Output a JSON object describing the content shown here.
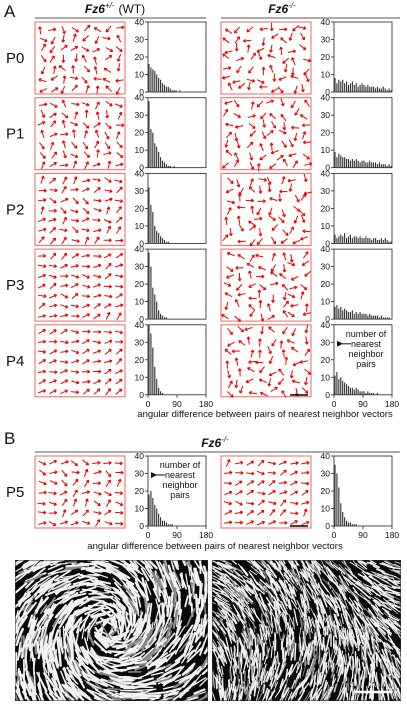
{
  "panel_a": {
    "label": "A",
    "groups": [
      {
        "gene": "Fz6",
        "superscript": "+/-",
        "suffix": "(WT)"
      },
      {
        "gene": "Fz6",
        "superscript": "-/-"
      }
    ],
    "rows": [
      "P0",
      "P1",
      "P2",
      "P3",
      "P4"
    ],
    "annotation": [
      "number of",
      "nearest",
      "neighbor",
      "pairs"
    ],
    "x_axis_label": "angular difference between pairs of nearest neighbor vectors"
  },
  "panel_b": {
    "label": "B",
    "title": {
      "gene": "Fz6",
      "superscript": "-/-"
    },
    "row": "P5",
    "annotation": [
      "number of",
      "nearest",
      "neighbor",
      "pairs"
    ],
    "x_axis_label": "angular difference between pairs of nearest neighbor vectors"
  },
  "chart_data": [
    {
      "type": "histogram",
      "color": "#333333",
      "bins": [
        0,
        6,
        12,
        18,
        24,
        30,
        36,
        42,
        48,
        54,
        60,
        66,
        72,
        78,
        84,
        90,
        96,
        102,
        108,
        114,
        120,
        126,
        132,
        138,
        144,
        150,
        156,
        162,
        168,
        174,
        180
      ],
      "values": [
        16,
        14,
        13,
        12,
        10,
        8,
        7,
        5,
        4,
        3,
        3,
        2,
        1,
        1,
        1,
        0,
        1,
        0,
        0,
        0,
        0,
        0,
        0,
        0,
        0,
        0,
        0,
        0,
        0,
        0
      ],
      "xlim": [
        0,
        180
      ],
      "ylim": [
        0,
        40
      ],
      "yticks": [
        0,
        10,
        20,
        30,
        40
      ]
    },
    {
      "type": "histogram",
      "color": "#333333",
      "bins": [
        0,
        6,
        12,
        18,
        24,
        30,
        36,
        42,
        48,
        54,
        60,
        66,
        72,
        78,
        84,
        90,
        96,
        102,
        108,
        114,
        120,
        126,
        132,
        138,
        144,
        150,
        156,
        162,
        168,
        174,
        180
      ],
      "values": [
        8,
        5,
        7,
        6,
        7,
        5,
        6,
        4,
        5,
        6,
        4,
        5,
        3,
        4,
        5,
        4,
        3,
        4,
        3,
        3,
        3,
        2,
        3,
        2,
        2,
        3,
        2,
        1,
        2,
        1
      ],
      "xlim": [
        0,
        180
      ],
      "ylim": [
        0,
        40
      ],
      "yticks": [
        0,
        10,
        20,
        30,
        40
      ]
    },
    {
      "type": "histogram",
      "color": "#333333",
      "bins": [
        0,
        6,
        12,
        18,
        24,
        30,
        36,
        42,
        48,
        54,
        60,
        66,
        72,
        78,
        84,
        90,
        96,
        102,
        108,
        114,
        120,
        126,
        132,
        138,
        144,
        150,
        156,
        162,
        168,
        174,
        180
      ],
      "values": [
        38,
        22,
        20,
        14,
        12,
        9,
        6,
        4,
        3,
        2,
        1,
        1,
        0,
        1,
        0,
        0,
        0,
        0,
        0,
        0,
        0,
        0,
        0,
        0,
        0,
        0,
        0,
        0,
        0,
        0
      ],
      "xlim": [
        0,
        180
      ],
      "ylim": [
        0,
        40
      ],
      "yticks": [
        0,
        10,
        20,
        30,
        40
      ]
    },
    {
      "type": "histogram",
      "color": "#333333",
      "bins": [
        0,
        6,
        12,
        18,
        24,
        30,
        36,
        42,
        48,
        54,
        60,
        66,
        72,
        78,
        84,
        90,
        96,
        102,
        108,
        114,
        120,
        126,
        132,
        138,
        144,
        150,
        156,
        162,
        168,
        174,
        180
      ],
      "values": [
        9,
        6,
        8,
        7,
        6,
        6,
        5,
        5,
        4,
        5,
        4,
        5,
        4,
        3,
        4,
        4,
        3,
        3,
        4,
        3,
        3,
        3,
        2,
        3,
        2,
        2,
        2,
        1,
        2,
        1
      ],
      "xlim": [
        0,
        180
      ],
      "ylim": [
        0,
        40
      ],
      "yticks": [
        0,
        10,
        20,
        30,
        40
      ]
    },
    {
      "type": "histogram",
      "color": "#333333",
      "bins": [
        0,
        6,
        12,
        18,
        24,
        30,
        36,
        42,
        48,
        54,
        60,
        66,
        72,
        78,
        84,
        90,
        96,
        102,
        108,
        114,
        120,
        126,
        132,
        138,
        144,
        150,
        156,
        162,
        168,
        174,
        180
      ],
      "values": [
        32,
        22,
        18,
        10,
        7,
        6,
        4,
        3,
        2,
        1,
        1,
        0,
        0,
        0,
        0,
        0,
        0,
        0,
        0,
        0,
        0,
        0,
        0,
        0,
        0,
        0,
        0,
        0,
        0,
        0
      ],
      "xlim": [
        0,
        180
      ],
      "ylim": [
        0,
        40
      ],
      "yticks": [
        0,
        10,
        20,
        30,
        40
      ]
    },
    {
      "type": "histogram",
      "color": "#333333",
      "bins": [
        0,
        6,
        12,
        18,
        24,
        30,
        36,
        42,
        48,
        54,
        60,
        66,
        72,
        78,
        84,
        90,
        96,
        102,
        108,
        114,
        120,
        126,
        132,
        138,
        144,
        150,
        156,
        162,
        168,
        174,
        180
      ],
      "values": [
        5,
        3,
        4,
        5,
        4,
        6,
        3,
        4,
        5,
        3,
        4,
        4,
        3,
        4,
        3,
        3,
        4,
        3,
        3,
        2,
        3,
        3,
        2,
        2,
        3,
        2,
        3,
        2,
        1,
        1
      ],
      "xlim": [
        0,
        180
      ],
      "ylim": [
        0,
        40
      ],
      "yticks": [
        0,
        10,
        20,
        30,
        40
      ]
    },
    {
      "type": "histogram",
      "color": "#333333",
      "bins": [
        0,
        6,
        12,
        18,
        24,
        30,
        36,
        42,
        48,
        54,
        60,
        66,
        72,
        78,
        84,
        90,
        96,
        102,
        108,
        114,
        120,
        126,
        132,
        138,
        144,
        150,
        156,
        162,
        168,
        174,
        180
      ],
      "values": [
        38,
        30,
        18,
        14,
        10,
        5,
        3,
        2,
        1,
        1,
        0,
        0,
        0,
        0,
        0,
        0,
        0,
        0,
        0,
        0,
        0,
        0,
        0,
        0,
        0,
        0,
        0,
        0,
        0,
        0
      ],
      "xlim": [
        0,
        180
      ],
      "ylim": [
        0,
        40
      ],
      "yticks": [
        0,
        10,
        20,
        30,
        40
      ]
    },
    {
      "type": "histogram",
      "color": "#333333",
      "bins": [
        0,
        6,
        12,
        18,
        24,
        30,
        36,
        42,
        48,
        54,
        60,
        66,
        72,
        78,
        84,
        90,
        96,
        102,
        108,
        114,
        120,
        126,
        132,
        138,
        144,
        150,
        156,
        162,
        168,
        174,
        180
      ],
      "values": [
        7,
        8,
        6,
        7,
        5,
        6,
        5,
        4,
        4,
        5,
        3,
        4,
        3,
        4,
        3,
        3,
        3,
        2,
        3,
        2,
        2,
        2,
        2,
        1,
        2,
        1,
        1,
        1,
        1,
        0
      ],
      "xlim": [
        0,
        180
      ],
      "ylim": [
        0,
        40
      ],
      "yticks": [
        0,
        10,
        20,
        30,
        40
      ]
    },
    {
      "type": "histogram",
      "color": "#333333",
      "bins": [
        0,
        6,
        12,
        18,
        24,
        30,
        36,
        42,
        48,
        54,
        60,
        66,
        72,
        78,
        84,
        90,
        96,
        102,
        108,
        114,
        120,
        126,
        132,
        138,
        144,
        150,
        156,
        162,
        168,
        174,
        180
      ],
      "values": [
        40,
        35,
        27,
        16,
        9,
        4,
        2,
        1,
        0,
        0,
        0,
        0,
        0,
        0,
        0,
        0,
        0,
        0,
        0,
        0,
        0,
        0,
        0,
        0,
        0,
        0,
        0,
        0,
        0,
        0
      ],
      "xlim": [
        0,
        180
      ],
      "ylim": [
        0,
        40
      ],
      "xticks": [
        0,
        90,
        180
      ],
      "yticks": [
        0,
        10,
        20,
        30,
        40
      ]
    },
    {
      "type": "histogram",
      "color": "#333333",
      "bins": [
        0,
        6,
        12,
        18,
        24,
        30,
        36,
        42,
        48,
        54,
        60,
        66,
        72,
        78,
        84,
        90,
        96,
        102,
        108,
        114,
        120,
        126,
        132,
        138,
        144,
        150,
        156,
        162,
        168,
        174,
        180
      ],
      "values": [
        11,
        13,
        9,
        10,
        8,
        7,
        6,
        5,
        4,
        4,
        3,
        4,
        3,
        2,
        2,
        2,
        1,
        2,
        1,
        1,
        1,
        0,
        1,
        0,
        0,
        0,
        0,
        0,
        0,
        0
      ],
      "xlim": [
        0,
        180
      ],
      "ylim": [
        0,
        40
      ],
      "xticks": [
        0,
        90,
        180
      ],
      "yticks": [
        0,
        10,
        20,
        30,
        40
      ]
    },
    {
      "type": "histogram",
      "color": "#333333",
      "bins": [
        0,
        6,
        12,
        18,
        24,
        30,
        36,
        42,
        48,
        54,
        60,
        66,
        72,
        78,
        84,
        90,
        96,
        102,
        108,
        114,
        120,
        126,
        132,
        138,
        144,
        150,
        156,
        162,
        168,
        174,
        180
      ],
      "values": [
        18,
        20,
        16,
        12,
        10,
        7,
        5,
        3,
        3,
        2,
        1,
        1,
        1,
        0,
        0,
        0,
        0,
        0,
        0,
        0,
        0,
        0,
        0,
        0,
        0,
        0,
        0,
        0,
        0,
        0
      ],
      "xlim": [
        0,
        180
      ],
      "ylim": [
        0,
        40
      ],
      "xticks": [
        0,
        90,
        180
      ],
      "yticks": [
        0,
        10,
        20,
        30,
        40
      ]
    },
    {
      "type": "histogram",
      "color": "#333333",
      "bins": [
        0,
        6,
        12,
        18,
        24,
        30,
        36,
        42,
        48,
        54,
        60,
        66,
        72,
        78,
        84,
        90,
        96,
        102,
        108,
        114,
        120,
        126,
        132,
        138,
        144,
        150,
        156,
        162,
        168,
        174,
        180
      ],
      "values": [
        35,
        30,
        22,
        13,
        8,
        5,
        3,
        2,
        2,
        1,
        1,
        1,
        0,
        0,
        0,
        0,
        0,
        0,
        0,
        0,
        0,
        0,
        0,
        0,
        0,
        0,
        0,
        0,
        0,
        0
      ],
      "xlim": [
        0,
        180
      ],
      "ylim": [
        0,
        40
      ],
      "xticks": [
        0,
        90,
        180
      ],
      "yticks": [
        0,
        10,
        20,
        30,
        40
      ]
    }
  ]
}
